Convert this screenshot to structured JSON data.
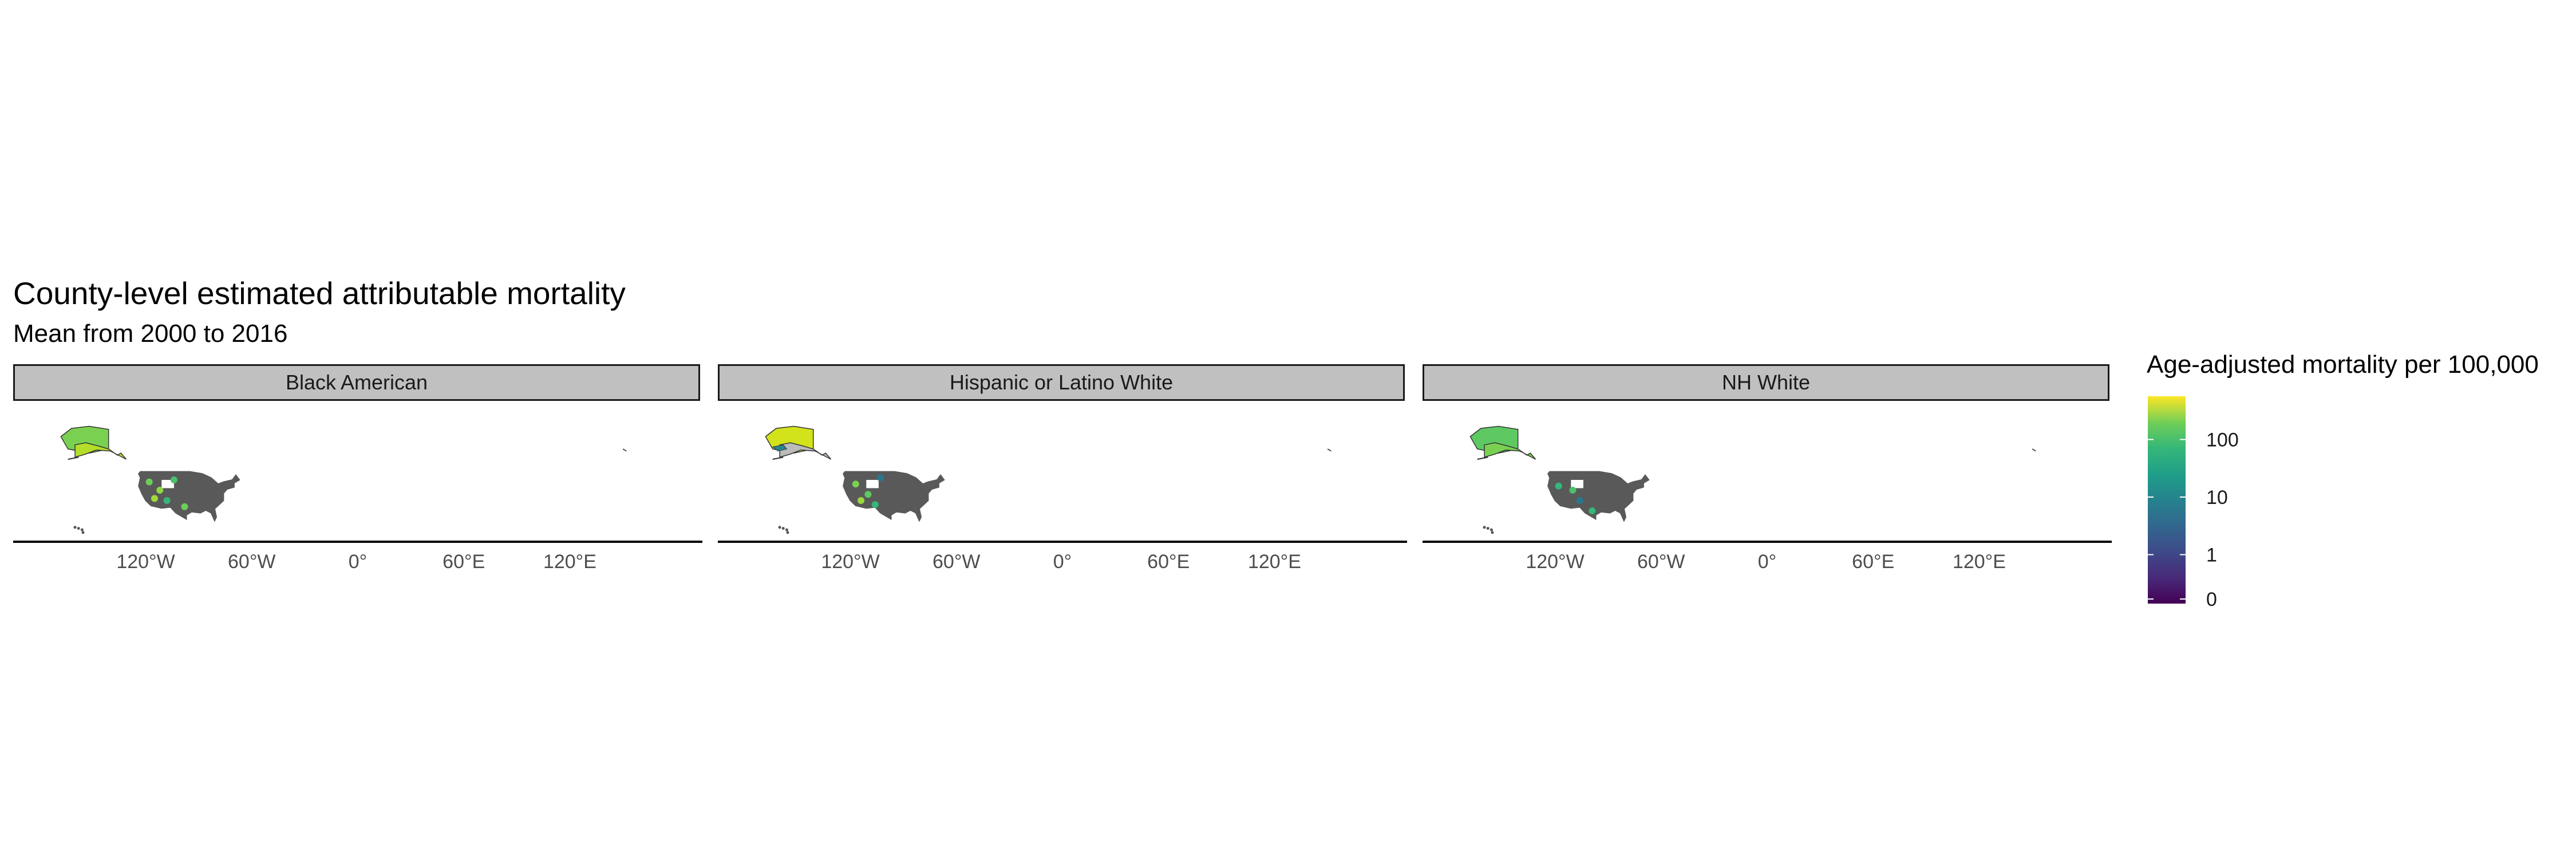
{
  "chart_data": {
    "type": "map",
    "title": "County-level estimated attributable mortality",
    "subtitle": "Mean from 2000 to 2016",
    "facets": [
      {
        "label": "Black American",
        "alaska_fill": "#7ad151",
        "alaska_fill2": "#b5de2b",
        "western_highlights": [
          {
            "lon": -118,
            "lat": 44,
            "color": "#6cce59"
          },
          {
            "lon": -112,
            "lat": 40,
            "color": "#8fd744"
          },
          {
            "lon": -108,
            "lat": 35,
            "color": "#35b779"
          },
          {
            "lon": -115,
            "lat": 36,
            "color": "#a0da39"
          },
          {
            "lon": -104,
            "lat": 45,
            "color": "#4ac16d"
          },
          {
            "lon": -98,
            "lat": 32,
            "color": "#6cce59"
          }
        ]
      },
      {
        "label": "Hispanic or Latino White",
        "alaska_fill": "#d2e21b",
        "alaska_fill2": "#bbbbbb",
        "western_highlights": [
          {
            "lon": -117,
            "lat": 43,
            "color": "#7ad151"
          },
          {
            "lon": -110,
            "lat": 38,
            "color": "#5ec962"
          },
          {
            "lon": -106,
            "lat": 33,
            "color": "#35b779"
          },
          {
            "lon": -114,
            "lat": 35,
            "color": "#9bd93c"
          },
          {
            "lon": -103,
            "lat": 46,
            "color": "#2a788e"
          }
        ],
        "alaska_blue": "#25858e"
      },
      {
        "label": "NH White",
        "alaska_fill": "#5ec962",
        "alaska_fill2": "#7ad151",
        "western_highlights": [
          {
            "lon": -118,
            "lat": 42,
            "color": "#35b779"
          },
          {
            "lon": -110,
            "lat": 40,
            "color": "#4ac16d"
          },
          {
            "lon": -106,
            "lat": 35,
            "color": "#2a788e"
          },
          {
            "lon": -99,
            "lat": 30,
            "color": "#35b779"
          }
        ]
      }
    ],
    "x_ticks": [
      "120°W",
      "60°W",
      "0°",
      "60°E",
      "120°E"
    ],
    "x_tick_values": [
      -120,
      -60,
      0,
      60,
      120
    ],
    "lon_range": [
      -195,
      195
    ],
    "legend": {
      "title": "Age-adjusted mortality per 100,000",
      "ticks": [
        "100",
        "10",
        "1",
        "0"
      ],
      "scale": "log",
      "palette": "viridis"
    },
    "land_color": "#595959"
  }
}
